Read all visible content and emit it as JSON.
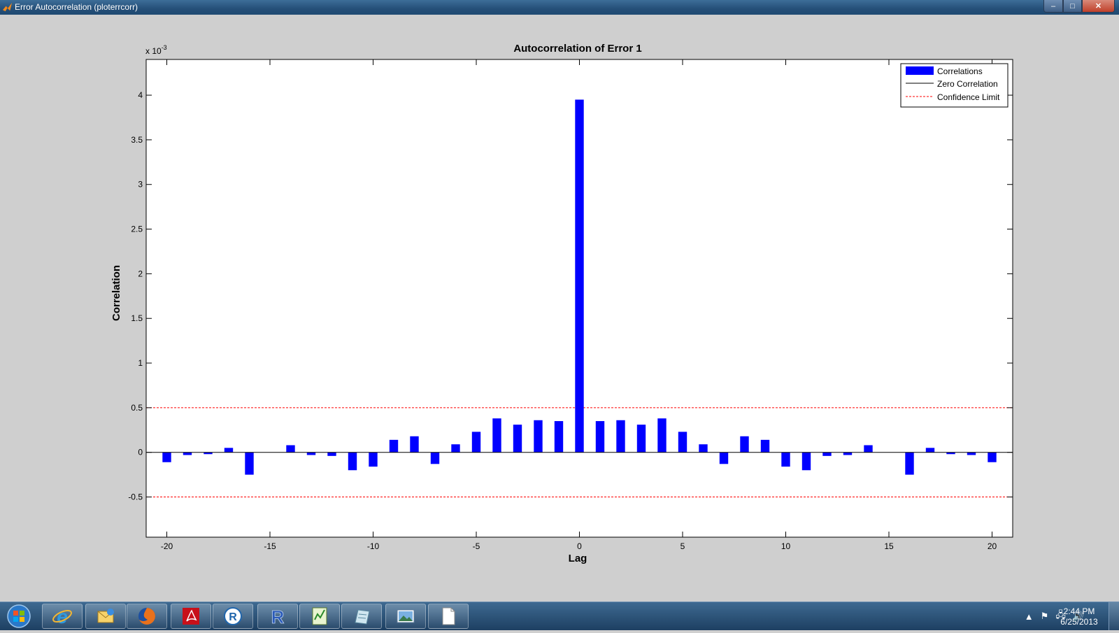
{
  "window": {
    "title": "Error Autocorrelation (ploterrcorr)",
    "buttons": {
      "minimize": "–",
      "maximize": "□",
      "close": "✕"
    }
  },
  "chart_data": {
    "type": "bar",
    "title": "Autocorrelation of Error 1",
    "xlabel": "Lag",
    "ylabel": "Correlation",
    "y_exponent_label": "x 10",
    "y_exponent": "-3",
    "xlim": [
      -21,
      21
    ],
    "ylim": [
      -0.95,
      4.4
    ],
    "x_ticks": [
      -20,
      -15,
      -10,
      -5,
      0,
      5,
      10,
      15,
      20
    ],
    "x_tick_labels": [
      "-20",
      "-15",
      "-10",
      "-5",
      "0",
      "5",
      "10",
      "15",
      "20"
    ],
    "y_ticks": [
      -0.5,
      0,
      0.5,
      1,
      1.5,
      2,
      2.5,
      3,
      3.5,
      4
    ],
    "y_tick_labels": [
      "-0.5",
      "0",
      "0.5",
      "1",
      "1.5",
      "2",
      "2.5",
      "3",
      "3.5",
      "4"
    ],
    "x": [
      -20,
      -19,
      -18,
      -17,
      -16,
      -15,
      -14,
      -13,
      -12,
      -11,
      -10,
      -9,
      -8,
      -7,
      -6,
      -5,
      -4,
      -3,
      -2,
      -1,
      0,
      1,
      2,
      3,
      4,
      5,
      6,
      7,
      8,
      9,
      10,
      11,
      12,
      13,
      14,
      15,
      16,
      17,
      18,
      19,
      20
    ],
    "values": [
      -0.11,
      -0.03,
      -0.02,
      0.05,
      -0.25,
      0.0,
      0.08,
      -0.03,
      -0.04,
      -0.2,
      -0.16,
      0.14,
      0.18,
      -0.13,
      0.09,
      0.23,
      0.38,
      0.31,
      0.36,
      0.35,
      3.95,
      0.35,
      0.36,
      0.31,
      0.38,
      0.23,
      0.09,
      -0.13,
      0.18,
      0.14,
      -0.16,
      -0.2,
      -0.04,
      -0.03,
      0.08,
      0.0,
      -0.25,
      0.05,
      -0.02,
      -0.03,
      -0.11
    ],
    "confidence_limit": 0.5,
    "bar_color": "#0000ff",
    "limit_color": "#ff0000",
    "legend": {
      "placement": "top-right",
      "entries": [
        "Correlations",
        "Zero Correlation",
        "Confidence Limit"
      ]
    }
  },
  "taskbar": {
    "items": [
      "start-orb-icon",
      "internet-explorer-icon",
      "outlook-icon",
      "firefox-icon",
      "adobe-reader-icon",
      "r-console-icon",
      "rstudio-icon",
      "matlab-editor-icon",
      "notepad-icon",
      "image-viewer-icon",
      "blank-document-icon"
    ],
    "clock_time": "2:44 PM",
    "clock_date": "6/25/2013"
  }
}
